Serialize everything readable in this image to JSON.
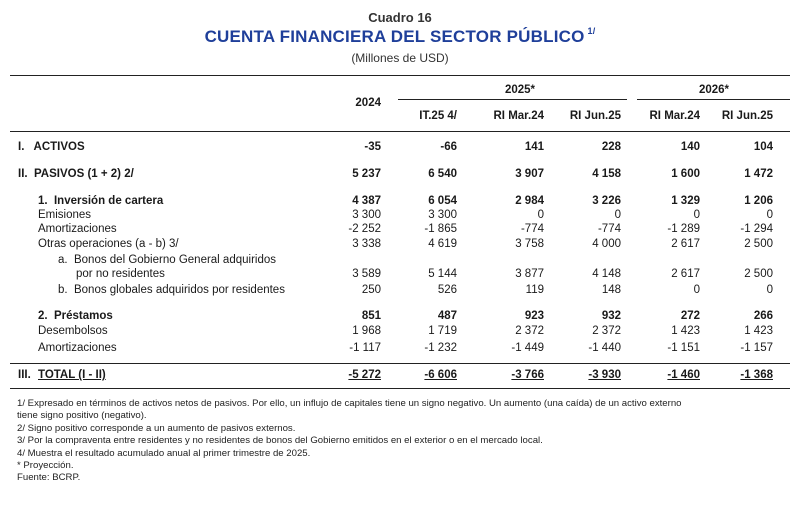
{
  "header": {
    "kicker": "Cuadro 16",
    "title": "CUENTA FINANCIERA DEL SECTOR PÚBLICO",
    "title_note": "1/",
    "subtitle": "(Millones de USD)"
  },
  "columns": {
    "group_2025": "2025*",
    "group_2026": "2026*",
    "col_2024": "2024",
    "col_it25": "IT.25 4/",
    "col_rimar24_a": "RI Mar.24",
    "col_rijun25_a": "RI Jun.25",
    "col_rimar24_b": "RI Mar.24",
    "col_rijun25_b": "RI Jun.25"
  },
  "rows": [
    {
      "label": "I.   ACTIVOS",
      "v": [
        "-35",
        "-66",
        "141",
        "228",
        "140",
        "104"
      ]
    },
    {
      "label": "II.  PASIVOS (1 + 2) 2/",
      "v": [
        "5 237",
        "6 540",
        "3 907",
        "4 158",
        "1 600",
        "1 472"
      ]
    },
    {
      "label": "1.  Inversión de cartera",
      "v": [
        "4 387",
        "6 054",
        "2 984",
        "3 226",
        "1 329",
        "1 206"
      ]
    },
    {
      "label": "Emisiones",
      "v": [
        "3 300",
        "3 300",
        "0",
        "0",
        "0",
        "0"
      ]
    },
    {
      "label": "Amortizaciones",
      "v": [
        "-2 252",
        "-1 865",
        "-774",
        "-774",
        "-1 289",
        "-1 294"
      ]
    },
    {
      "label": "Otras operaciones (a - b) 3/",
      "v": [
        "3 338",
        "4 619",
        "3 758",
        "4 000",
        "2 617",
        "2 500"
      ]
    },
    {
      "label": "a.  Bonos del Gobierno General adquiridos",
      "label2": "por no residentes",
      "v": [
        "3 589",
        "5 144",
        "3 877",
        "4 148",
        "2 617",
        "2 500"
      ]
    },
    {
      "label": "b.  Bonos globales adquiridos por residentes",
      "v": [
        "250",
        "526",
        "119",
        "148",
        "0",
        "0"
      ]
    },
    {
      "label": "2.  Préstamos",
      "v": [
        "851",
        "487",
        "923",
        "932",
        "272",
        "266"
      ]
    },
    {
      "label": "Desembolsos",
      "v": [
        "1 968",
        "1 719",
        "2 372",
        "2 372",
        "1 423",
        "1 423"
      ]
    },
    {
      "label": "Amortizaciones",
      "v": [
        "-1 117",
        "-1 232",
        "-1 449",
        "-1 440",
        "-1 151",
        "-1 157"
      ]
    },
    {
      "label": "TOTAL (I - II)",
      "prefix": "III.",
      "v": [
        "-5 272",
        "-6 606",
        "-3 766",
        "-3 930",
        "-1 460",
        "-1 368"
      ]
    }
  ],
  "footnotes": [
    "1/  Expresado en términos de activos netos de pasivos. Por ello, un influjo de capitales tiene un signo negativo. Un aumento (una caída) de un activo externo",
    "tiene signo positivo (negativo).",
    "2/  Signo positivo corresponde a un aumento de pasivos externos.",
    "3/  Por la compraventa entre residentes y no residentes de bonos del Gobierno emitidos en el exterior o en el mercado local.",
    "4/  Muestra el resultado acumulado anual al primer trimestre de 2025.",
    "* Proyección.",
    "Fuente: BCRP."
  ]
}
